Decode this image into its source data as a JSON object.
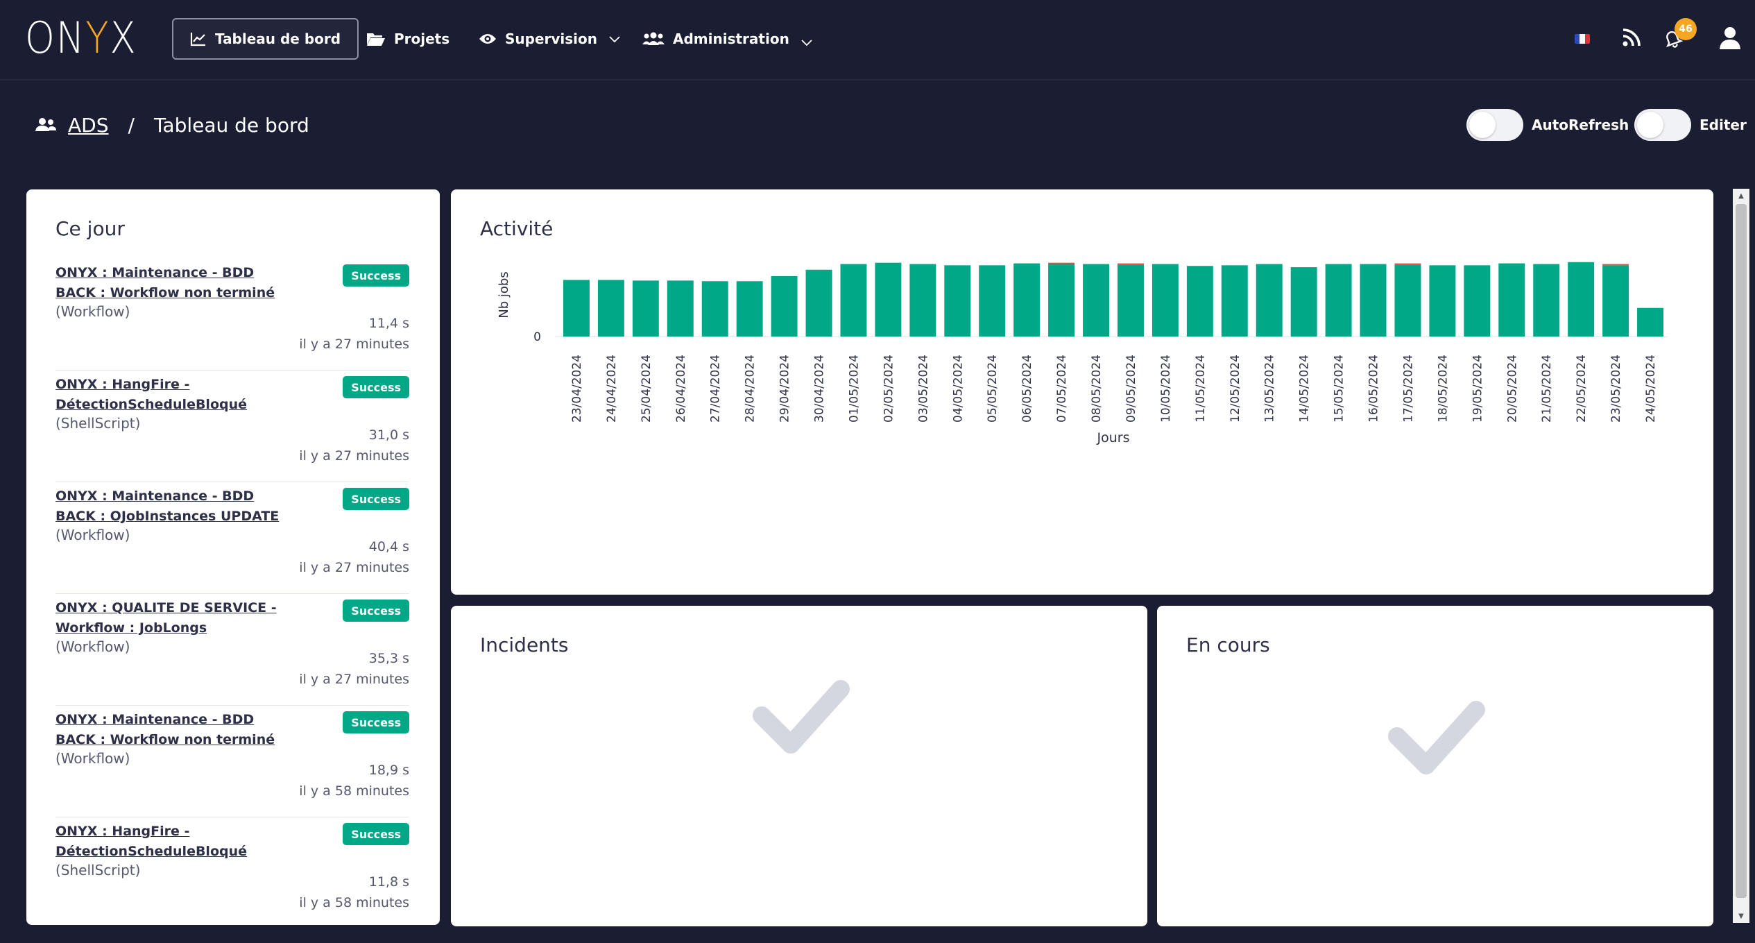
{
  "app": {
    "logo_left": "ON",
    "logo_accent": "Y",
    "logo_right": "X"
  },
  "nav": {
    "dashboard": "Tableau de bord",
    "projects": "Projets",
    "supervision": "Supervision",
    "administration": "Administration"
  },
  "header_right": {
    "notifications_count": "46"
  },
  "breadcrumb": {
    "team": "ADS",
    "separator": "/",
    "page": "Tableau de bord"
  },
  "toggles": {
    "autorefresh": "AutoRefresh",
    "edit": "Editer"
  },
  "today": {
    "title": "Ce jour",
    "jobs": [
      {
        "name": "ONYX : Maintenance - BDD BACK : Workflow non terminé",
        "type": "(Workflow)",
        "status": "Success",
        "duration": "11,4 s",
        "ago": "il y a 27 minutes"
      },
      {
        "name": "ONYX : HangFire - DétectionScheduleBloqué",
        "type": "(ShellScript)",
        "status": "Success",
        "duration": "31,0 s",
        "ago": "il y a 27 minutes"
      },
      {
        "name": "ONYX : Maintenance - BDD BACK : OJobInstances UPDATE",
        "type": "(Workflow)",
        "status": "Success",
        "duration": "40,4 s",
        "ago": "il y a 27 minutes"
      },
      {
        "name": "ONYX : QUALITE DE SERVICE - Workflow : JobLongs",
        "type": "(Workflow)",
        "status": "Success",
        "duration": "35,3 s",
        "ago": "il y a 27 minutes"
      },
      {
        "name": "ONYX : Maintenance - BDD BACK : Workflow non terminé",
        "type": "(Workflow)",
        "status": "Success",
        "duration": "18,9 s",
        "ago": "il y a 58 minutes"
      },
      {
        "name": "ONYX : HangFire - DétectionScheduleBloqué",
        "type": "(ShellScript)",
        "status": "Success",
        "duration": "11,8 s",
        "ago": "il y a 58 minutes"
      }
    ]
  },
  "activity": {
    "title": "Activité"
  },
  "incidents": {
    "title": "Incidents"
  },
  "in_progress": {
    "title": "En cours"
  },
  "colors": {
    "success_bar": "#00a887",
    "failure_bar": "#e74c3c",
    "check": "#d5d7e0",
    "nav_bg": "#1b1e32",
    "accent": "#f5a623"
  },
  "chart_data": {
    "type": "bar",
    "title": "Activité",
    "xlabel": "Jours",
    "ylabel": "Nb jobs",
    "y_tick_labels": [
      "0"
    ],
    "categories": [
      "23/04/2024",
      "24/04/2024",
      "25/04/2024",
      "26/04/2024",
      "27/04/2024",
      "28/04/2024",
      "29/04/2024",
      "30/04/2024",
      "01/05/2024",
      "02/05/2024",
      "03/05/2024",
      "04/05/2024",
      "05/05/2024",
      "06/05/2024",
      "07/05/2024",
      "08/05/2024",
      "09/05/2024",
      "10/05/2024",
      "11/05/2024",
      "12/05/2024",
      "13/05/2024",
      "14/05/2024",
      "15/05/2024",
      "16/05/2024",
      "17/05/2024",
      "18/05/2024",
      "19/05/2024",
      "20/05/2024",
      "21/05/2024",
      "22/05/2024",
      "23/05/2024",
      "24/05/2024"
    ],
    "series": [
      {
        "name": "Success",
        "values": [
          89,
          89,
          88,
          88,
          87,
          87,
          95,
          105,
          114,
          116,
          114,
          112,
          112,
          115,
          114,
          114,
          113,
          114,
          111,
          112,
          114,
          109,
          114,
          114,
          113,
          112,
          112,
          115,
          114,
          117,
          112,
          45
        ]
      },
      {
        "name": "Failure",
        "values": [
          0,
          0,
          0,
          0,
          0,
          0,
          0,
          0,
          0,
          0,
          0,
          0,
          0,
          0,
          2,
          0,
          2,
          0,
          0,
          0,
          0,
          0,
          0,
          0,
          2,
          0,
          0,
          0,
          0,
          0,
          2,
          0
        ]
      }
    ],
    "ylim": [
      0,
      120
    ]
  }
}
